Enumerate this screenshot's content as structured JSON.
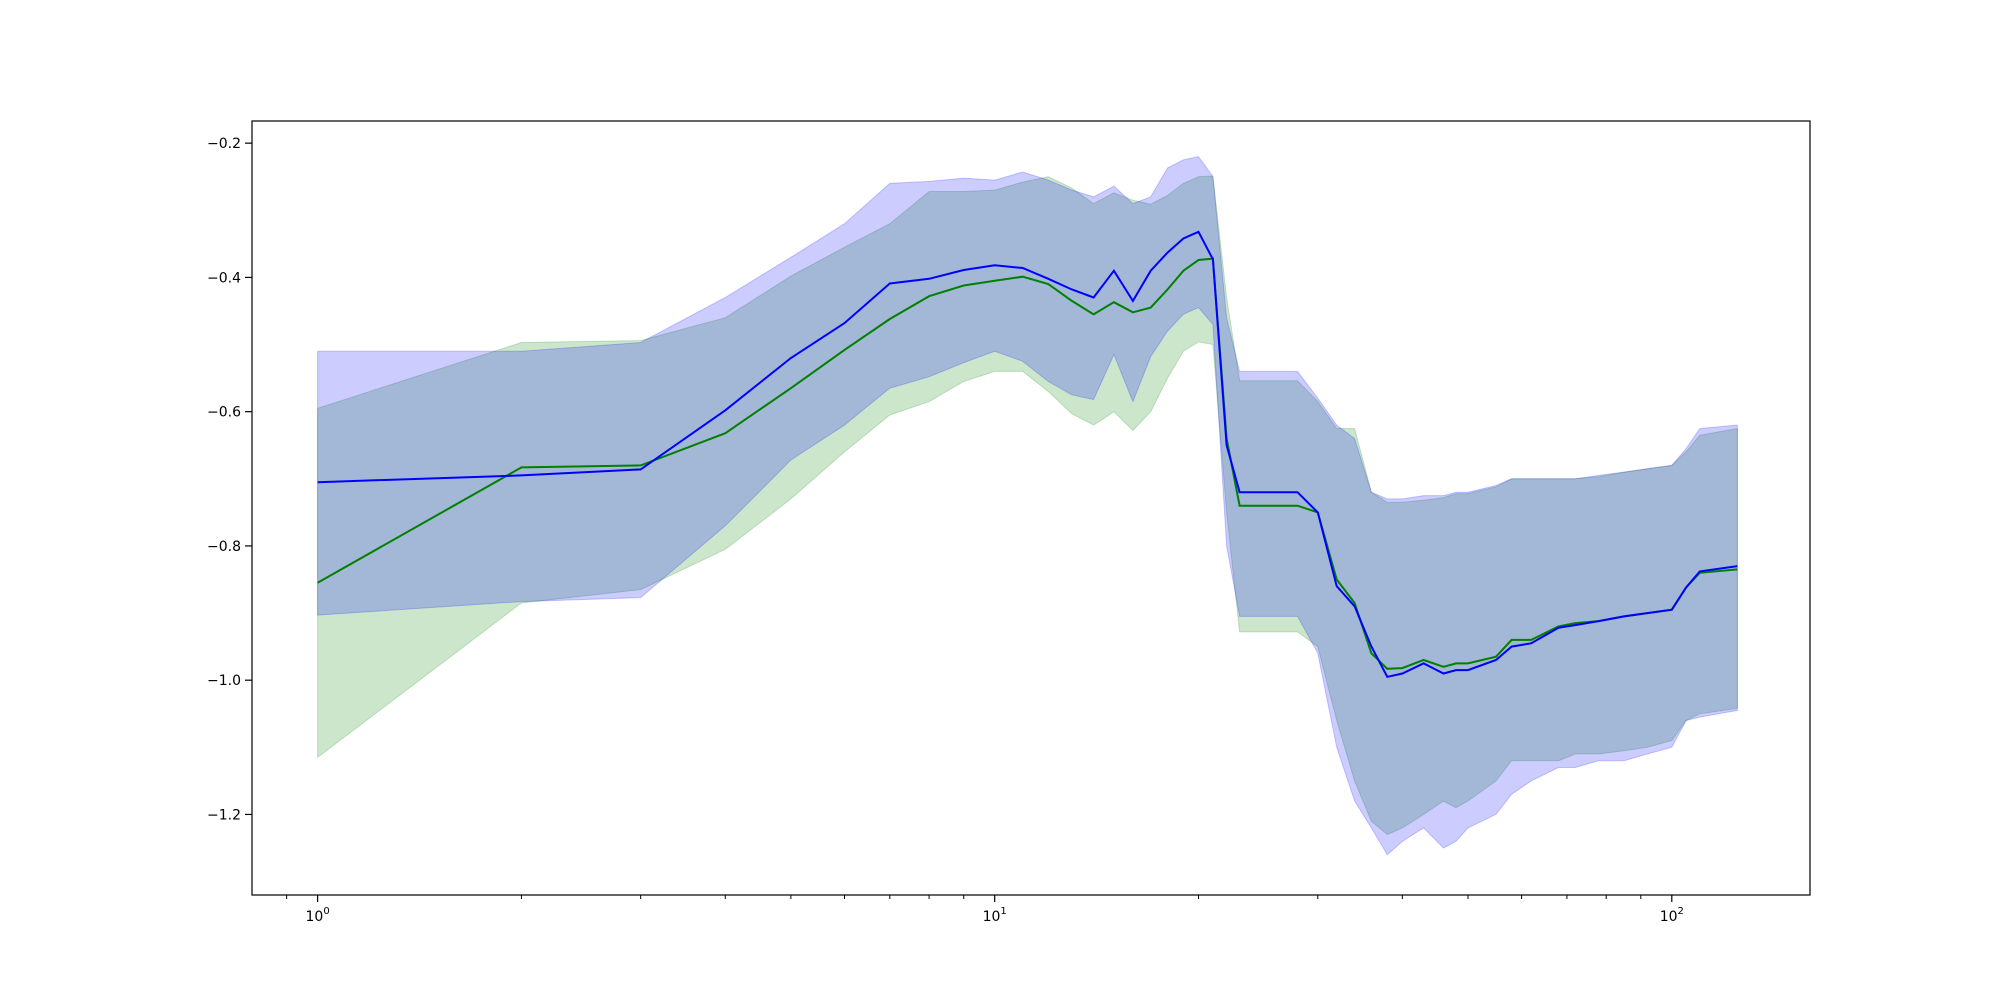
{
  "chart_data": {
    "type": "line",
    "title": "",
    "xlabel": "",
    "ylabel": "",
    "xscale": "log",
    "xlim": [
      0.8,
      160
    ],
    "ylim": [
      -1.32,
      -0.167
    ],
    "grid": false,
    "legend": "none",
    "x_ticks": [
      {
        "value": 1,
        "label": "10",
        "exp": "0"
      },
      {
        "value": 10,
        "label": "10",
        "exp": "1"
      },
      {
        "value": 100,
        "label": "10",
        "exp": "2"
      }
    ],
    "y_ticks": [
      {
        "value": -0.2,
        "label": "−0.2"
      },
      {
        "value": -0.4,
        "label": "−0.4"
      },
      {
        "value": -0.6,
        "label": "−0.6"
      },
      {
        "value": -0.8,
        "label": "−0.8"
      },
      {
        "value": -1.0,
        "label": "−1.0"
      },
      {
        "value": -1.2,
        "label": "−1.2"
      }
    ],
    "series": [
      {
        "color": "#008000",
        "band_color": "#008000",
        "band_opacity": 0.2,
        "x": [
          1,
          2,
          3,
          4,
          5,
          6,
          7,
          8,
          9,
          10,
          11,
          12,
          13,
          14,
          15,
          16,
          17,
          18,
          19,
          20,
          21,
          22,
          23,
          25,
          28,
          30,
          32,
          34,
          36,
          38,
          40,
          43,
          46,
          48,
          50,
          55,
          58,
          62,
          68,
          72,
          78,
          85,
          92,
          100,
          105,
          110,
          125
        ],
        "y": [
          -0.855,
          -0.683,
          -0.68,
          -0.632,
          -0.565,
          -0.508,
          -0.462,
          -0.428,
          -0.412,
          -0.405,
          -0.399,
          -0.41,
          -0.435,
          -0.455,
          -0.437,
          -0.452,
          -0.445,
          -0.418,
          -0.39,
          -0.374,
          -0.372,
          -0.64,
          -0.74,
          -0.74,
          -0.74,
          -0.75,
          -0.85,
          -0.885,
          -0.96,
          -0.983,
          -0.982,
          -0.97,
          -0.98,
          -0.975,
          -0.975,
          -0.965,
          -0.94,
          -0.94,
          -0.92,
          -0.915,
          -0.912,
          -0.905,
          -0.9,
          -0.895,
          -0.862,
          -0.84,
          -0.835
        ],
        "lower": [
          -1.115,
          -0.885,
          -0.865,
          -0.805,
          -0.73,
          -0.66,
          -0.605,
          -0.585,
          -0.555,
          -0.54,
          -0.54,
          -0.57,
          -0.603,
          -0.62,
          -0.6,
          -0.628,
          -0.6,
          -0.55,
          -0.51,
          -0.496,
          -0.5,
          -0.75,
          -0.928,
          -0.928,
          -0.928,
          -0.95,
          -1.06,
          -1.15,
          -1.21,
          -1.23,
          -1.22,
          -1.2,
          -1.18,
          -1.19,
          -1.18,
          -1.15,
          -1.12,
          -1.12,
          -1.12,
          -1.11,
          -1.11,
          -1.105,
          -1.1,
          -1.09,
          -1.06,
          -1.05,
          -1.042
        ],
        "upper": [
          -0.595,
          -0.497,
          -0.494,
          -0.46,
          -0.398,
          -0.355,
          -0.32,
          -0.272,
          -0.272,
          -0.27,
          -0.258,
          -0.25,
          -0.267,
          -0.29,
          -0.274,
          -0.285,
          -0.291,
          -0.278,
          -0.26,
          -0.25,
          -0.249,
          -0.43,
          -0.554,
          -0.554,
          -0.554,
          -0.585,
          -0.625,
          -0.625,
          -0.72,
          -0.735,
          -0.735,
          -0.732,
          -0.728,
          -0.722,
          -0.722,
          -0.712,
          -0.7,
          -0.7,
          -0.7,
          -0.7,
          -0.697,
          -0.69,
          -0.685,
          -0.68,
          -0.66,
          -0.635,
          -0.625
        ]
      },
      {
        "color": "#0000ff",
        "band_color": "#0000ff",
        "band_opacity": 0.2,
        "x": [
          1,
          2,
          3,
          4,
          5,
          6,
          7,
          8,
          9,
          10,
          11,
          12,
          13,
          14,
          15,
          16,
          17,
          18,
          19,
          20,
          21,
          22,
          23,
          25,
          28,
          30,
          32,
          34,
          36,
          38,
          40,
          43,
          46,
          48,
          50,
          55,
          58,
          62,
          68,
          72,
          78,
          85,
          92,
          100,
          105,
          110,
          125
        ],
        "y": [
          -0.705,
          -0.695,
          -0.686,
          -0.598,
          -0.52,
          -0.468,
          -0.409,
          -0.402,
          -0.389,
          -0.382,
          -0.386,
          -0.402,
          -0.418,
          -0.43,
          -0.39,
          -0.435,
          -0.39,
          -0.363,
          -0.342,
          -0.332,
          -0.373,
          -0.65,
          -0.72,
          -0.72,
          -0.72,
          -0.75,
          -0.86,
          -0.89,
          -0.95,
          -0.995,
          -0.99,
          -0.975,
          -0.99,
          -0.985,
          -0.985,
          -0.97,
          -0.95,
          -0.945,
          -0.922,
          -0.918,
          -0.912,
          -0.905,
          -0.9,
          -0.895,
          -0.862,
          -0.838,
          -0.83
        ],
        "lower": [
          -0.903,
          -0.883,
          -0.877,
          -0.77,
          -0.672,
          -0.62,
          -0.565,
          -0.548,
          -0.527,
          -0.51,
          -0.525,
          -0.555,
          -0.575,
          -0.582,
          -0.515,
          -0.585,
          -0.518,
          -0.48,
          -0.455,
          -0.445,
          -0.47,
          -0.8,
          -0.905,
          -0.905,
          -0.905,
          -0.96,
          -1.1,
          -1.18,
          -1.22,
          -1.26,
          -1.24,
          -1.22,
          -1.25,
          -1.24,
          -1.22,
          -1.2,
          -1.17,
          -1.15,
          -1.13,
          -1.13,
          -1.12,
          -1.12,
          -1.11,
          -1.1,
          -1.06,
          -1.055,
          -1.045
        ],
        "upper": [
          -0.51,
          -0.51,
          -0.497,
          -0.43,
          -0.37,
          -0.32,
          -0.26,
          -0.257,
          -0.252,
          -0.255,
          -0.243,
          -0.255,
          -0.27,
          -0.28,
          -0.264,
          -0.29,
          -0.28,
          -0.237,
          -0.225,
          -0.22,
          -0.25,
          -0.46,
          -0.54,
          -0.54,
          -0.54,
          -0.58,
          -0.62,
          -0.64,
          -0.72,
          -0.73,
          -0.73,
          -0.725,
          -0.725,
          -0.72,
          -0.72,
          -0.71,
          -0.7,
          -0.7,
          -0.7,
          -0.7,
          -0.695,
          -0.69,
          -0.685,
          -0.68,
          -0.655,
          -0.625,
          -0.62
        ]
      }
    ]
  }
}
